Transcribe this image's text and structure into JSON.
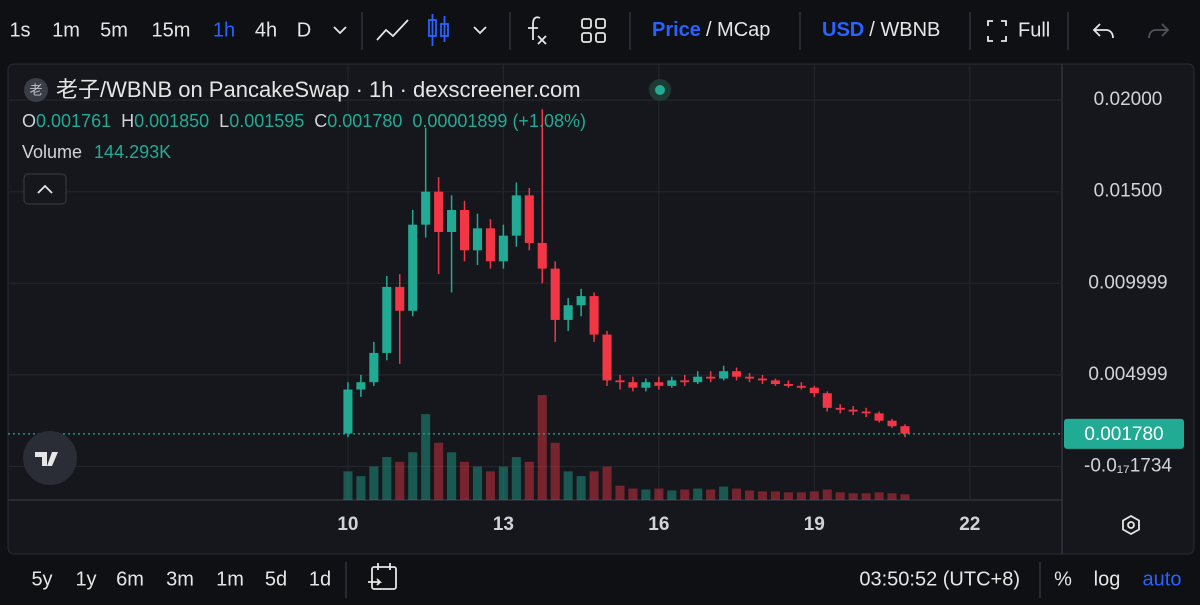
{
  "toolbar": {
    "intervals": [
      "1s",
      "1m",
      "5m",
      "15m",
      "1h",
      "4h",
      "D"
    ],
    "active_interval": 4,
    "price_toggle": [
      "Price",
      "/ MCap"
    ],
    "currency_toggle": [
      "USD",
      "/ WBNB"
    ],
    "full": "Full"
  },
  "header": {
    "icon": "老",
    "title": "老子/WBNB on PancakeSwap · 1h · dexscreener.com",
    "ohlc": [
      {
        "key": "O",
        "value": "0.001761"
      },
      {
        "key": "H",
        "value": "0.001850"
      },
      {
        "key": "L",
        "value": "0.001595"
      },
      {
        "key": "C",
        "value": "0.001780"
      }
    ],
    "change": "0.00001899 (+1.08%)",
    "volume_label": "Volume",
    "volume_value": "144.293K"
  },
  "chart_data": {
    "type": "candlestick",
    "up_color": "#22ab94",
    "down_color": "#f23645",
    "grid": true,
    "x": [
      10,
      10.25,
      10.5,
      10.75,
      11,
      11.25,
      11.5,
      11.75,
      12,
      12.25,
      12.5,
      12.75,
      13,
      13.25,
      13.5,
      13.75,
      14,
      14.25,
      14.5,
      14.75,
      15,
      15.25,
      15.5,
      15.75,
      16,
      16.25,
      16.5,
      16.75,
      17,
      17.25,
      17.5,
      17.75,
      18,
      18.25,
      18.5,
      18.75,
      19,
      19.25,
      19.5,
      19.75,
      20,
      20.25,
      20.5,
      20.75
    ],
    "open": [
      0.0018,
      0.0042,
      0.0046,
      0.0062,
      0.0098,
      0.0085,
      0.0132,
      0.015,
      0.0128,
      0.014,
      0.0118,
      0.013,
      0.0112,
      0.0126,
      0.0148,
      0.0122,
      0.0108,
      0.008,
      0.0088,
      0.0093,
      0.0072,
      0.0047,
      0.0046,
      0.0043,
      0.0046,
      0.0044,
      0.0047,
      0.0046,
      0.0049,
      0.0048,
      0.0052,
      0.0049,
      0.0048,
      0.0047,
      0.0045,
      0.0044,
      0.0043,
      0.004,
      0.0032,
      0.0031,
      0.003,
      0.0029,
      0.0025,
      0.0022
    ],
    "high": [
      0.0046,
      0.005,
      0.0068,
      0.0104,
      0.0105,
      0.014,
      0.0185,
      0.0158,
      0.0148,
      0.0145,
      0.0138,
      0.0135,
      0.0132,
      0.0155,
      0.0152,
      0.0195,
      0.0112,
      0.0092,
      0.0097,
      0.0095,
      0.0074,
      0.005,
      0.0049,
      0.0048,
      0.0049,
      0.0049,
      0.005,
      0.0052,
      0.0052,
      0.0055,
      0.0054,
      0.0051,
      0.005,
      0.0048,
      0.0047,
      0.0046,
      0.0044,
      0.0041,
      0.0034,
      0.0033,
      0.0032,
      0.003,
      0.0026,
      0.0023
    ],
    "low": [
      0.0016,
      0.0038,
      0.0044,
      0.0058,
      0.0056,
      0.0082,
      0.0125,
      0.0105,
      0.0095,
      0.0112,
      0.011,
      0.0108,
      0.0108,
      0.012,
      0.0118,
      0.01,
      0.0068,
      0.0074,
      0.0082,
      0.0068,
      0.0044,
      0.0042,
      0.0041,
      0.0041,
      0.0042,
      0.0043,
      0.0044,
      0.0045,
      0.0046,
      0.0047,
      0.0047,
      0.0046,
      0.0045,
      0.0044,
      0.0043,
      0.0042,
      0.0038,
      0.003,
      0.0029,
      0.0028,
      0.0027,
      0.0024,
      0.0021,
      0.0016
    ],
    "close": [
      0.0042,
      0.0046,
      0.0062,
      0.0098,
      0.0085,
      0.0132,
      0.015,
      0.0128,
      0.014,
      0.0118,
      0.013,
      0.0112,
      0.0126,
      0.0148,
      0.0122,
      0.0108,
      0.008,
      0.0088,
      0.0093,
      0.0072,
      0.0047,
      0.0046,
      0.0043,
      0.0046,
      0.0044,
      0.0047,
      0.0046,
      0.0049,
      0.0048,
      0.0052,
      0.0049,
      0.0048,
      0.0047,
      0.0045,
      0.0044,
      0.0043,
      0.004,
      0.0032,
      0.0031,
      0.003,
      0.0029,
      0.0025,
      0.0022,
      0.0018
    ],
    "volume": [
      300,
      250,
      350,
      450,
      400,
      500,
      900,
      600,
      500,
      400,
      350,
      300,
      350,
      450,
      400,
      1100,
      600,
      300,
      250,
      300,
      350,
      150,
      120,
      110,
      120,
      100,
      110,
      120,
      110,
      140,
      120,
      100,
      90,
      90,
      80,
      80,
      90,
      110,
      80,
      70,
      70,
      80,
      70,
      60
    ],
    "xlim": [
      3.44,
      23.78
    ],
    "xticks": [
      10,
      13,
      16,
      19,
      22
    ],
    "ylim": [
      -0.00183,
      0.02197
    ],
    "yticks": [
      {
        "value": 0.02,
        "label": "0.02000"
      },
      {
        "value": 0.015,
        "label": "0.01500"
      },
      {
        "value": 0.009999,
        "label": "0.009999"
      },
      {
        "value": 0.004999,
        "label": "0.004999"
      },
      {
        "value": -1.734e-18,
        "label": "-0.0₁₇1734"
      }
    ],
    "price_line": {
      "value": 0.00178,
      "label": "0.001780"
    }
  },
  "footer": {
    "ranges": [
      "5y",
      "1y",
      "6m",
      "3m",
      "1m",
      "5d",
      "1d"
    ],
    "clock": "03:50:52 (UTC+8)",
    "percent": "%",
    "log": "log",
    "auto": "auto"
  }
}
